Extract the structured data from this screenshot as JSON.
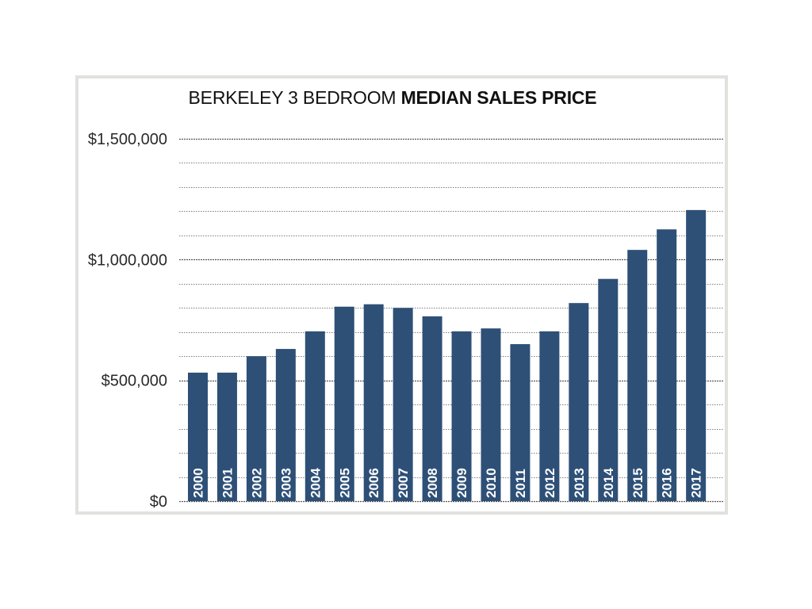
{
  "title": {
    "light": "BERKELEY 3 BEDROOM",
    "bold": "MEDIAN SALES PRICE"
  },
  "colors": {
    "bar": "#2e5077",
    "frame": "#e1e1de",
    "grid": "#555555"
  },
  "chart_data": {
    "type": "bar",
    "title": "BERKELEY 3 BEDROOM MEDIAN SALES PRICE",
    "xlabel": "",
    "ylabel": "",
    "ylim": [
      0,
      1500000
    ],
    "grid": true,
    "y_ticks": [
      {
        "value": 0,
        "label": "$0"
      },
      {
        "value": 500000,
        "label": "$500,000"
      },
      {
        "value": 1000000,
        "label": "$1,000,000"
      },
      {
        "value": 1500000,
        "label": "$1,500,000"
      }
    ],
    "categories": [
      "2000",
      "2001",
      "2002",
      "2003",
      "2004",
      "2005",
      "2006",
      "2007",
      "2008",
      "2009",
      "2010",
      "2011",
      "2012",
      "2013",
      "2014",
      "2015",
      "2016",
      "2017"
    ],
    "values": [
      532000,
      532000,
      600000,
      630000,
      703000,
      805000,
      815000,
      800000,
      765000,
      703000,
      715000,
      650000,
      703000,
      820000,
      920000,
      1040000,
      1125000,
      1205000
    ]
  }
}
